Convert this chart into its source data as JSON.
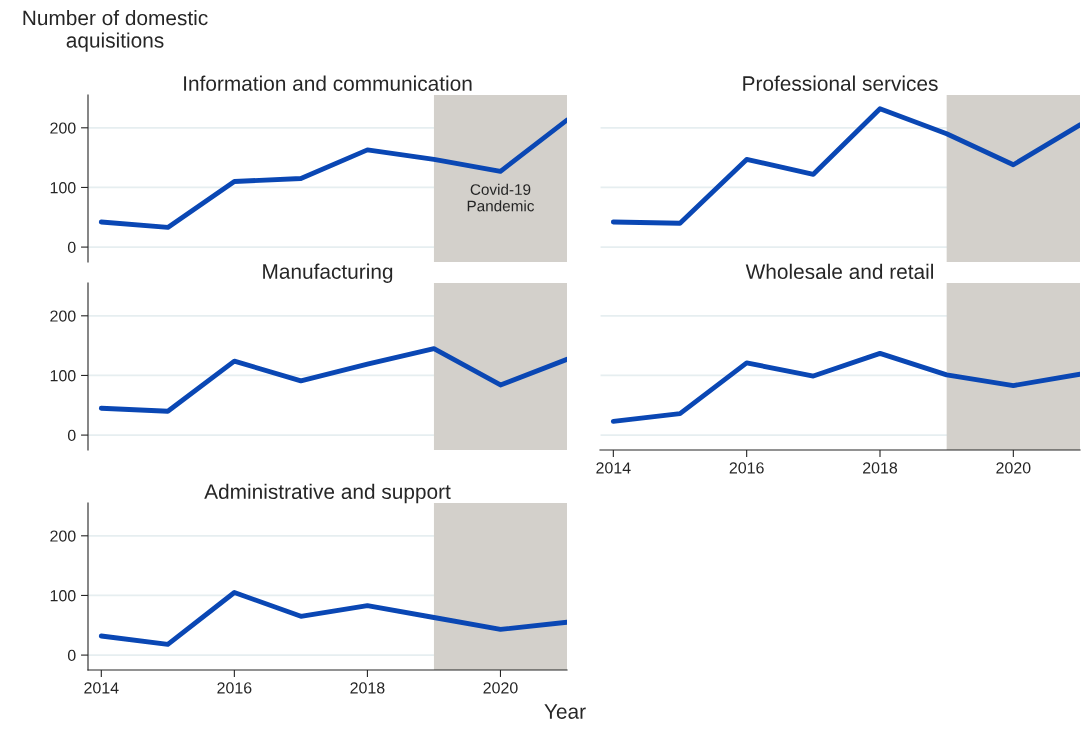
{
  "chart_data": [
    {
      "type": "line",
      "title": "Information and communication",
      "ylabel": "Number of domestic\naquisitions",
      "x": [
        2014,
        2015,
        2016,
        2017,
        2018,
        2019,
        2020,
        2021
      ],
      "series": [
        {
          "color": "#0a47b4",
          "values": [
            42,
            33,
            110,
            115,
            163,
            147,
            127,
            213
          ]
        }
      ],
      "xlim": [
        2013.8,
        2021
      ],
      "ylim": [
        -25,
        255
      ],
      "yticks": [
        0,
        100,
        200
      ],
      "xticks": [
        2014,
        2016,
        2018,
        2020
      ],
      "grid": "y",
      "tick_labels": "y",
      "bands": [
        {
          "axis": "x",
          "from": 2019,
          "to": 2021,
          "label": "Covid-19\nPandemic",
          "color": "#d3d0cb"
        }
      ]
    },
    {
      "type": "line",
      "title": "Professional services",
      "x": [
        2014,
        2015,
        2016,
        2017,
        2018,
        2019,
        2020,
        2021
      ],
      "series": [
        {
          "color": "#0a47b4",
          "values": [
            42,
            40,
            147,
            122,
            232,
            190,
            138,
            205
          ]
        }
      ],
      "xlim": [
        2013.8,
        2021
      ],
      "ylim": [
        -25,
        255
      ],
      "yticks": [
        0,
        100,
        200
      ],
      "xticks": [
        2014,
        2016,
        2018,
        2020
      ],
      "grid": "y",
      "tick_labels": false,
      "bands": [
        {
          "axis": "x",
          "from": 2019,
          "to": 2021,
          "color": "#d3d0cb"
        }
      ]
    },
    {
      "type": "line",
      "title": "Manufacturing",
      "x": [
        2014,
        2015,
        2016,
        2017,
        2018,
        2019,
        2020,
        2021
      ],
      "series": [
        {
          "color": "#0a47b4",
          "values": [
            45,
            40,
            124,
            91,
            119,
            145,
            84,
            127
          ]
        }
      ],
      "xlim": [
        2013.8,
        2021
      ],
      "ylim": [
        -25,
        255
      ],
      "yticks": [
        0,
        100,
        200
      ],
      "xticks": [
        2014,
        2016,
        2018,
        2020
      ],
      "grid": "y",
      "tick_labels": "y",
      "bands": [
        {
          "axis": "x",
          "from": 2019,
          "to": 2021,
          "color": "#d3d0cb"
        }
      ]
    },
    {
      "type": "line",
      "title": "Wholesale and retail",
      "x": [
        2014,
        2015,
        2016,
        2017,
        2018,
        2019,
        2020,
        2021
      ],
      "series": [
        {
          "color": "#0a47b4",
          "values": [
            23,
            36,
            121,
            99,
            137,
            101,
            83,
            102
          ]
        }
      ],
      "xlim": [
        2013.8,
        2021
      ],
      "ylim": [
        -25,
        255
      ],
      "yticks": [
        0,
        100,
        200
      ],
      "xticks": [
        2014,
        2016,
        2018,
        2020
      ],
      "grid": "y",
      "tick_labels": "x",
      "bands": [
        {
          "axis": "x",
          "from": 2019,
          "to": 2021,
          "color": "#d3d0cb"
        }
      ]
    },
    {
      "type": "line",
      "title": "Administrative and support",
      "xlabel": "Year",
      "x": [
        2014,
        2015,
        2016,
        2017,
        2018,
        2019,
        2020,
        2021
      ],
      "series": [
        {
          "color": "#0a47b4",
          "values": [
            32,
            18,
            105,
            65,
            83,
            63,
            43,
            55
          ]
        }
      ],
      "xlim": [
        2013.8,
        2021
      ],
      "ylim": [
        -25,
        255
      ],
      "yticks": [
        0,
        100,
        200
      ],
      "xticks": [
        2014,
        2016,
        2018,
        2020
      ],
      "grid": "y",
      "bands": [
        {
          "axis": "x",
          "from": 2019,
          "to": 2021,
          "color": "#d3d0cb"
        }
      ]
    }
  ]
}
